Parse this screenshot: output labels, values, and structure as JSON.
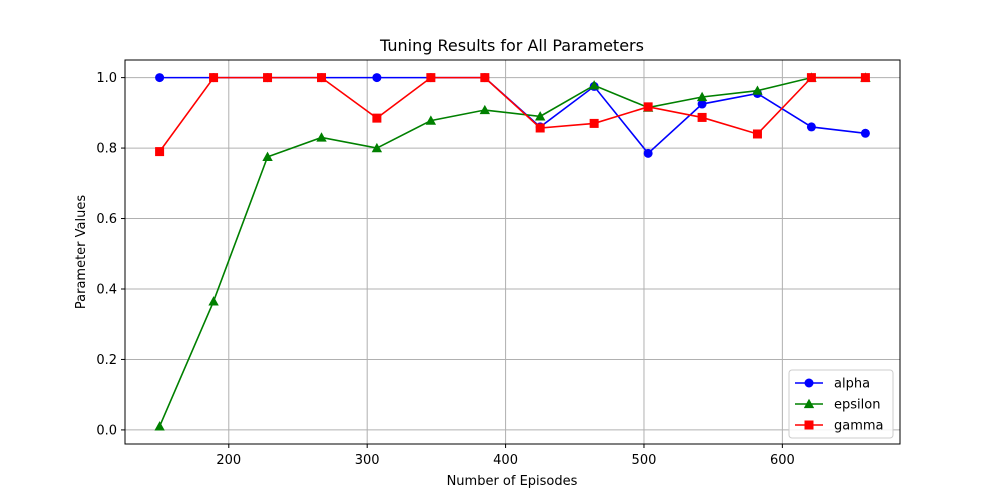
{
  "chart_data": {
    "type": "line",
    "title": "Tuning Results for All Parameters",
    "xlabel": "Number of Episodes",
    "ylabel": "Parameter Values",
    "xlim": [
      125,
      685
    ],
    "ylim": [
      -0.04,
      1.05
    ],
    "xticks": [
      200,
      300,
      400,
      500,
      600
    ],
    "yticks": [
      0.0,
      0.2,
      0.4,
      0.6,
      0.8,
      1.0
    ],
    "xtick_labels": [
      "200",
      "300",
      "400",
      "500",
      "600"
    ],
    "ytick_labels": [
      "0.0",
      "0.2",
      "0.4",
      "0.6",
      "0.8",
      "1.0"
    ],
    "grid": true,
    "legend_position": "lower-right",
    "x": [
      150,
      189,
      228,
      267,
      307,
      346,
      385,
      425,
      464,
      503,
      542,
      582,
      621,
      660
    ],
    "series": [
      {
        "name": "alpha",
        "color": "#0000ff",
        "marker": "circle",
        "values": [
          1.0,
          1.0,
          1.0,
          1.0,
          1.0,
          1.0,
          1.0,
          0.86,
          0.975,
          0.785,
          0.925,
          0.955,
          0.86,
          0.842
        ]
      },
      {
        "name": "epsilon",
        "color": "#008000",
        "marker": "triangle",
        "values": [
          0.01,
          0.365,
          0.775,
          0.83,
          0.8,
          0.878,
          0.908,
          0.89,
          0.978,
          0.915,
          0.945,
          0.963,
          1.0,
          1.0
        ]
      },
      {
        "name": "gamma",
        "color": "#ff0000",
        "marker": "square",
        "values": [
          0.79,
          1.0,
          1.0,
          1.0,
          0.885,
          1.0,
          1.0,
          0.857,
          0.87,
          0.917,
          0.887,
          0.84,
          1.0,
          1.0
        ]
      }
    ]
  }
}
